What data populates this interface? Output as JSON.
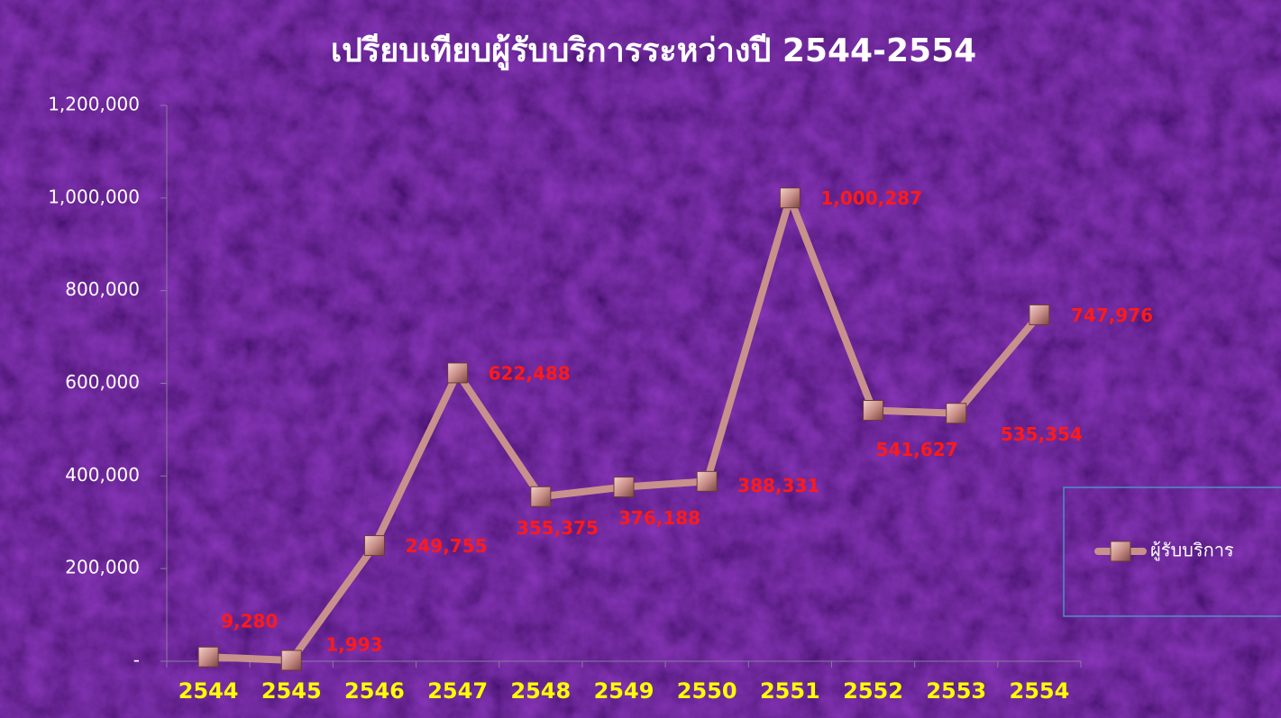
{
  "chart_data": {
    "type": "line",
    "title": "เปรียบเทียบผู้รับบริการระหว่างปี 2544-2554",
    "categories": [
      "2544",
      "2545",
      "2546",
      "2547",
      "2548",
      "2549",
      "2550",
      "2551",
      "2552",
      "2553",
      "2554"
    ],
    "series": [
      {
        "name": "ผู้รับบริการ",
        "color": "#c9918c",
        "values": [
          9280,
          1993,
          249755,
          622488,
          355375,
          376188,
          388331,
          1000287,
          541627,
          535354,
          747976
        ],
        "value_labels": [
          "9,280",
          "1,993",
          "249,755",
          "622,488",
          "355,375",
          "376,188",
          "388,331",
          "1,000,287",
          "541,627",
          "535,354",
          "747,976"
        ]
      }
    ],
    "ylim": [
      0,
      1200000
    ],
    "yticks": [
      {
        "value": 0,
        "label": "-"
      },
      {
        "value": 200000,
        "label": "200,000"
      },
      {
        "value": 400000,
        "label": "400,000"
      },
      {
        "value": 600000,
        "label": "600,000"
      },
      {
        "value": 800000,
        "label": "800,000"
      },
      {
        "value": 1000000,
        "label": "1,000,000"
      },
      {
        "value": 1200000,
        "label": "1,200,000"
      }
    ],
    "grid": false,
    "legend": "right"
  }
}
